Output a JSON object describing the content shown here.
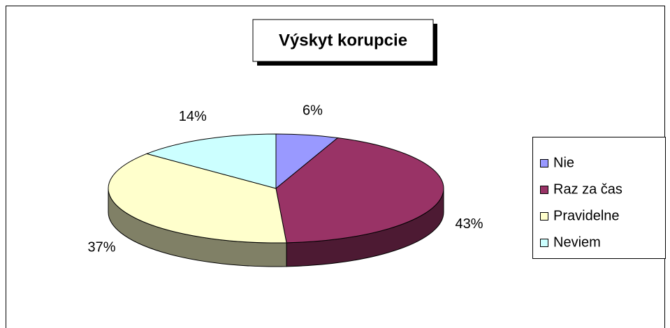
{
  "chart_data": {
    "type": "pie",
    "title": "Výskyt korupcie",
    "categories": [
      "Nie",
      "Raz za čas",
      "Pravidelne",
      "Neviem"
    ],
    "values": [
      6,
      43,
      37,
      14
    ],
    "value_labels": [
      "6%",
      "43%",
      "37%",
      "14%"
    ],
    "colors": [
      "#9999ff",
      "#993366",
      "#ffffcc",
      "#ccffff"
    ],
    "legend": "right"
  }
}
